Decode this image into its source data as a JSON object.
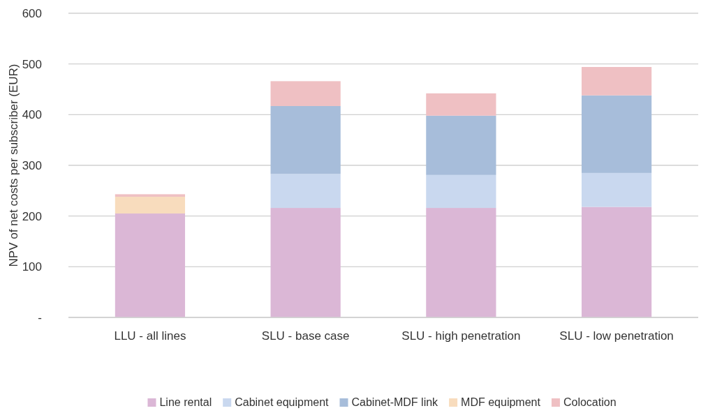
{
  "chart_data": {
    "type": "bar",
    "stacked": true,
    "ylabel": "NPV of net costs per subscriber (EUR)",
    "categories": [
      "LLU - all lines",
      "SLU - base case",
      "SLU - high penetration",
      "SLU - low penetration"
    ],
    "series": [
      {
        "name": "Line rental",
        "color": "#dbb7d6",
        "values": [
          205,
          216,
          216,
          218
        ]
      },
      {
        "name": "Cabinet equipment",
        "color": "#c9d8ef",
        "values": [
          0,
          67,
          65,
          67
        ]
      },
      {
        "name": "Cabinet-MDF link",
        "color": "#a7bdda",
        "values": [
          0,
          134,
          117,
          153
        ]
      },
      {
        "name": "MDF equipment",
        "color": "#f8dcbd",
        "values": [
          33,
          0,
          0,
          0
        ]
      },
      {
        "name": "Colocation",
        "color": "#efc0c3",
        "values": [
          5,
          49,
          44,
          56
        ]
      }
    ],
    "ylim": [
      0,
      600
    ],
    "yticks": [
      {
        "value": 0,
        "label": "-"
      },
      100,
      200,
      300,
      400,
      500,
      600
    ],
    "grid": "y",
    "legend": "bottom"
  }
}
